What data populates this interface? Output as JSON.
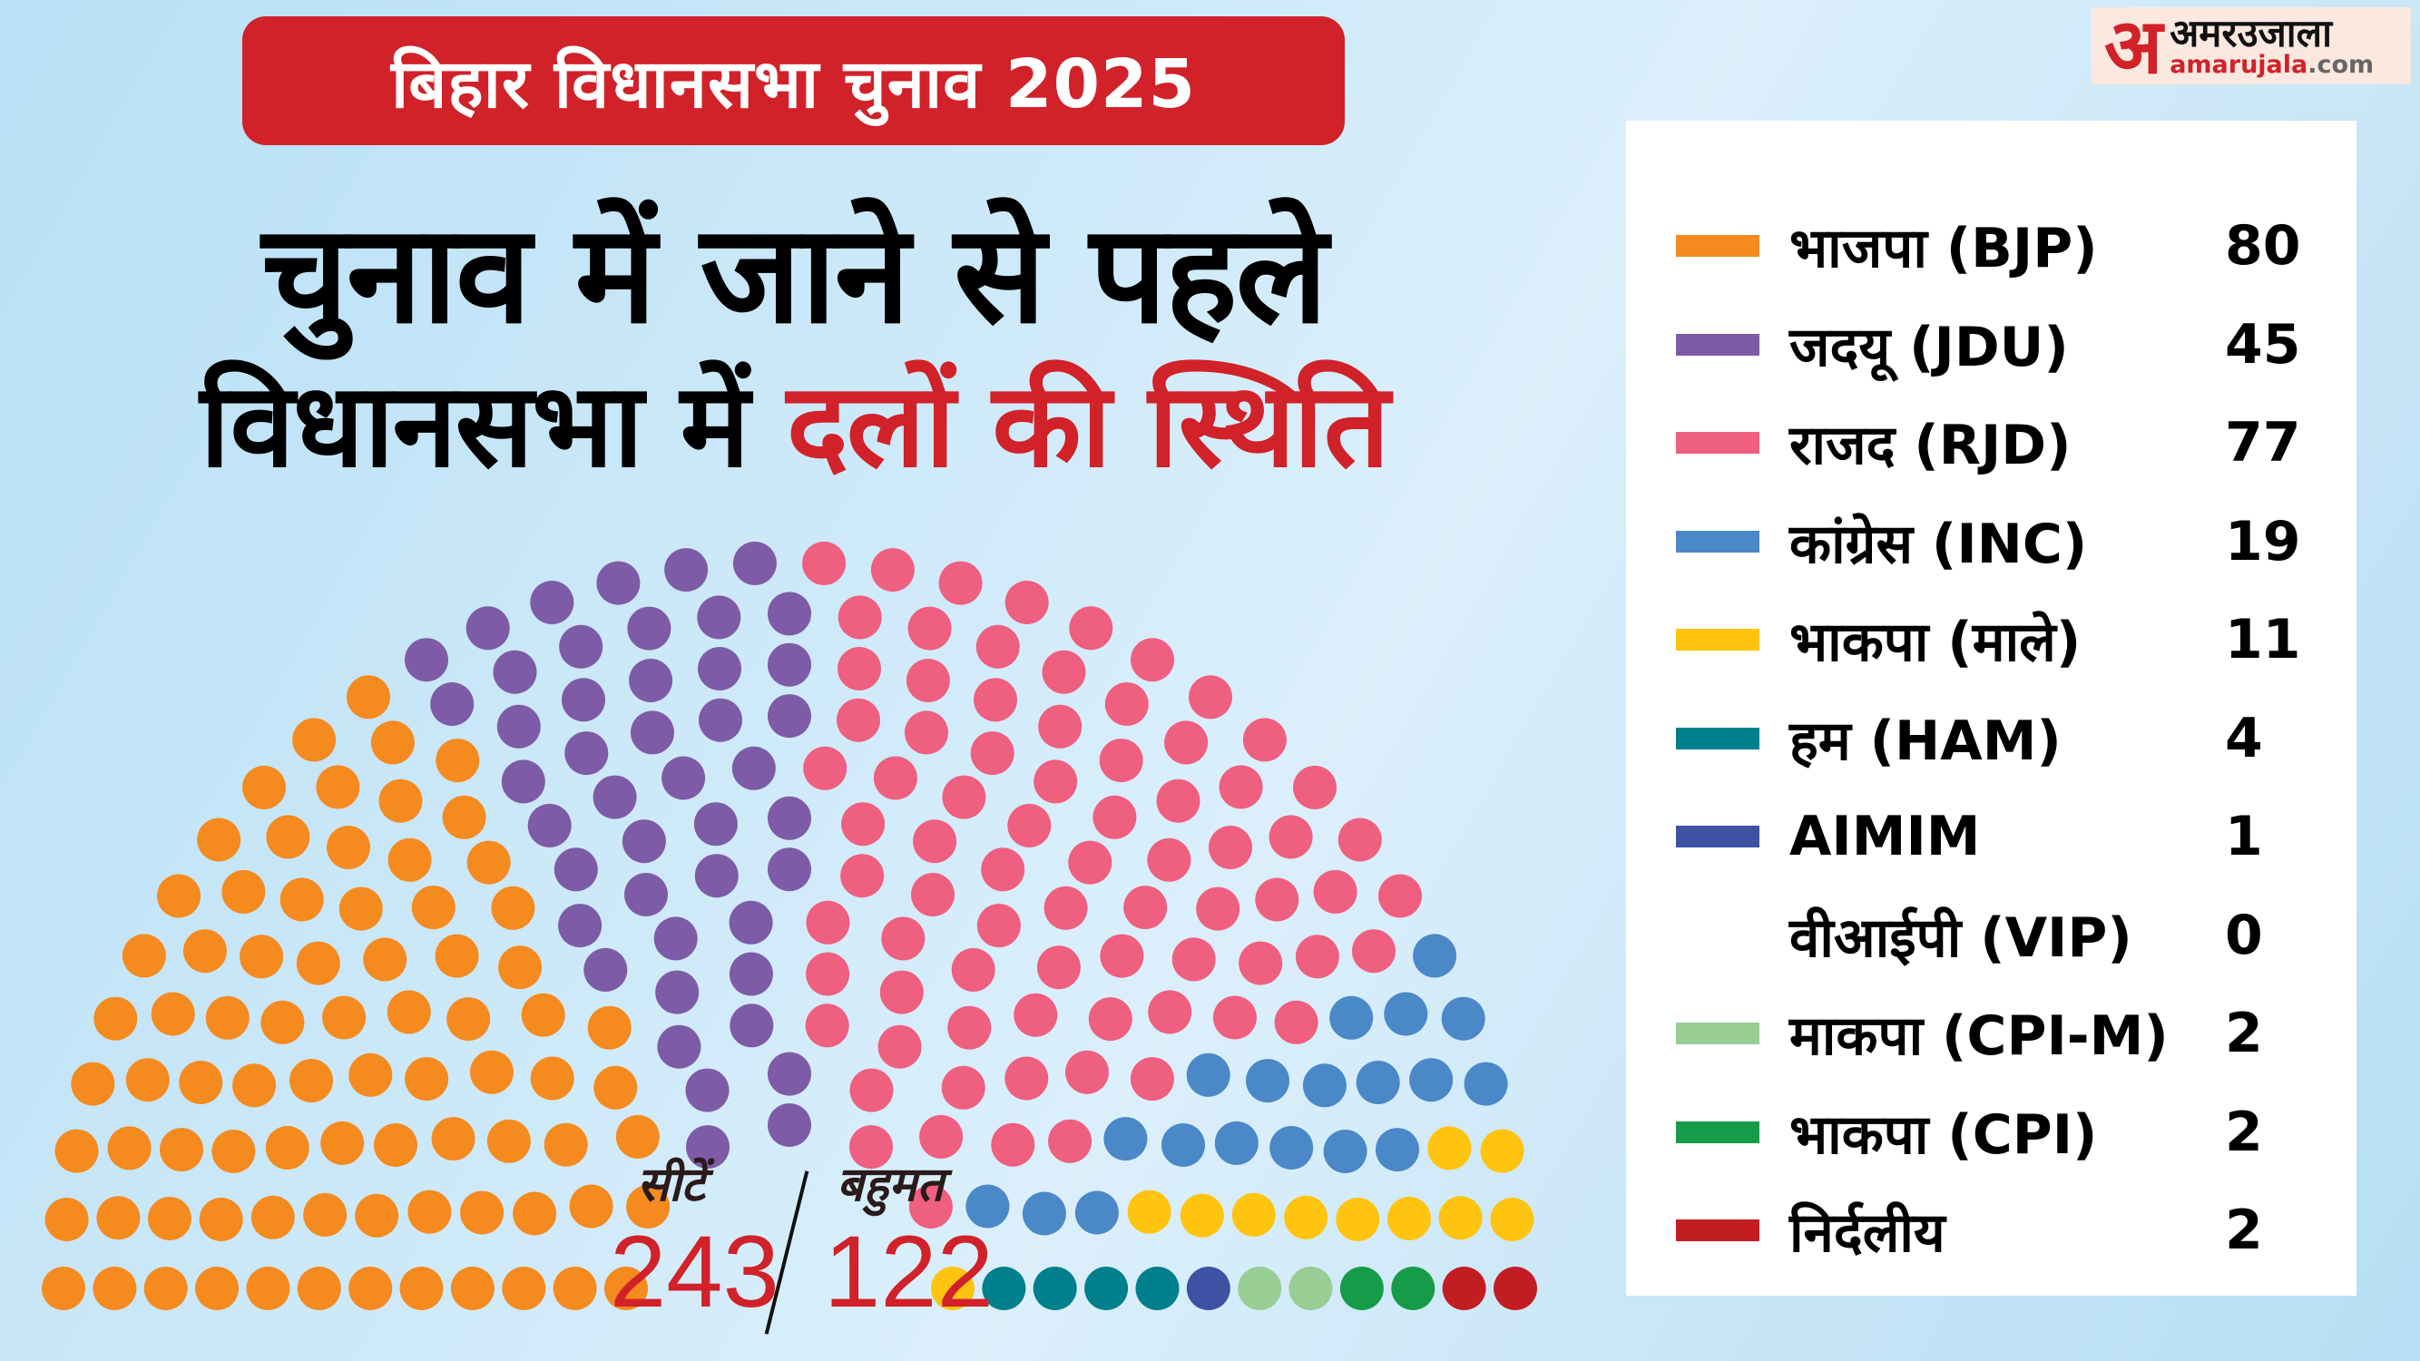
{
  "header": {
    "pill_title": "बिहार विधानसभा चुनाव 2025",
    "headline_line1": "चुनाव में जाने से पहले",
    "headline_line2_black": "विधानसभा में ",
    "headline_line2_red": "दलों की स्थिति"
  },
  "logo": {
    "mark": "अ",
    "hindi": "अमरउजाला",
    "english_red": "amarujala",
    "english_grey": ".com"
  },
  "summary": {
    "seats_label": "सीटें",
    "seats_value": "243",
    "majority_label": "बहुमत",
    "majority_value": "122"
  },
  "legend": [
    {
      "name": "भाजपा (BJP)",
      "count": "80",
      "color": "#f58a1f"
    },
    {
      "name": "जदयू (JDU)",
      "count": "45",
      "color": "#7e5ba6"
    },
    {
      "name": "राजद (RJD)",
      "count": "77",
      "color": "#ef5f80"
    },
    {
      "name": "कांग्रेस (INC)",
      "count": "19",
      "color": "#4a88c8"
    },
    {
      "name": "भाकपा (माले)",
      "count": "11",
      "color": "#fec40f"
    },
    {
      "name": "हम (HAM)",
      "count": "4",
      "color": "#007f8d"
    },
    {
      "name": "AIMIM",
      "count": "1",
      "color": "#3e51a3"
    },
    {
      "name": "वीआईपी (VIP)",
      "count": "0",
      "color": ""
    },
    {
      "name": "माकपा (CPI-M)",
      "count": "2",
      "color": "#98cd94"
    },
    {
      "name": "भाकपा (CPI)",
      "count": "2",
      "color": "#169c48"
    },
    {
      "name": "निर्दलीय",
      "count": "2",
      "color": "#c21d23"
    }
  ],
  "chart_data": {
    "type": "parliament",
    "title": "बिहार विधानसभा चुनाव 2025 — चुनाव में जाने से पहले विधानसभा में दलों की स्थिति",
    "total_seats": 243,
    "majority": 122,
    "categories": [
      "भाजपा (BJP)",
      "जदयू (JDU)",
      "राजद (RJD)",
      "कांग्रेस (INC)",
      "भाकपा (माले)",
      "हम (HAM)",
      "AIMIM",
      "वीआईपी (VIP)",
      "माकपा (CPI-M)",
      "भाकपा (CPI)",
      "निर्दलीय"
    ],
    "values": [
      80,
      45,
      77,
      19,
      11,
      4,
      1,
      0,
      2,
      2,
      2
    ],
    "colors": [
      "#f58a1f",
      "#7e5ba6",
      "#ef5f80",
      "#4a88c8",
      "#fec40f",
      "#007f8d",
      "#3e51a3",
      "",
      "#98cd94",
      "#169c48",
      "#c21d23"
    ],
    "legend_position": "right"
  }
}
